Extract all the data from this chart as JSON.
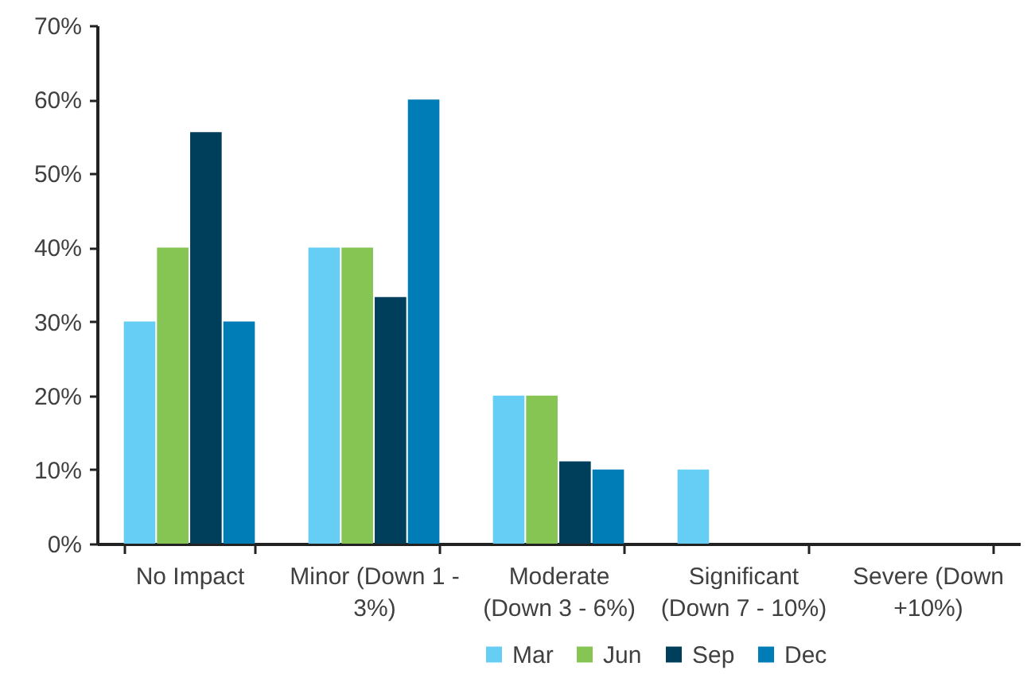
{
  "chart_data": {
    "type": "bar",
    "categories": [
      "No Impact",
      "Minor (Down 1 - 3%)",
      "Moderate (Down 3 - 6%)",
      "Significant (Down 7 - 10%)",
      "Severe (Down +10%)"
    ],
    "series": [
      {
        "name": "Mar",
        "color": "#66cdf4",
        "values": [
          30,
          40,
          20,
          10,
          0
        ]
      },
      {
        "name": "Jun",
        "color": "#86c454",
        "values": [
          40,
          40,
          20,
          0,
          0
        ]
      },
      {
        "name": "Sep",
        "color": "#003f5c",
        "values": [
          55.6,
          33.3,
          11.1,
          0,
          0
        ]
      },
      {
        "name": "Dec",
        "color": "#007db7",
        "values": [
          30,
          60,
          10,
          0,
          0
        ]
      }
    ],
    "ylim": [
      0,
      70
    ],
    "yticks": [
      {
        "value": 0,
        "label": "0%"
      },
      {
        "value": 10,
        "label": "10%"
      },
      {
        "value": 20,
        "label": "20%"
      },
      {
        "value": 30,
        "label": "30%"
      },
      {
        "value": 40,
        "label": "40%"
      },
      {
        "value": 50,
        "label": "50%"
      },
      {
        "value": 60,
        "label": "60%"
      },
      {
        "value": 70,
        "label": "70%"
      }
    ],
    "legend": "bottom"
  }
}
